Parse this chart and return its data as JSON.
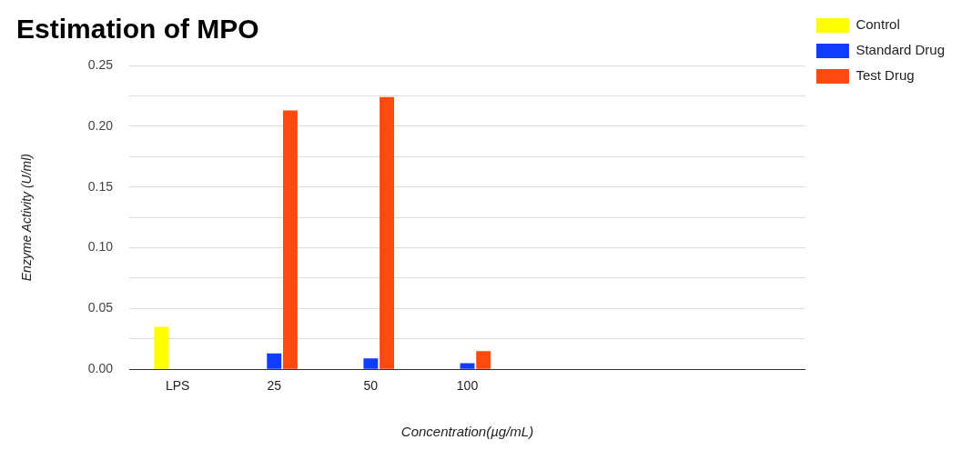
{
  "chart_data": {
    "type": "bar",
    "title": "Estimation of MPO",
    "xlabel": "Concentration(µg/mL)",
    "ylabel": "Enzyme Activity (U/ml)",
    "categories": [
      "LPS",
      "25",
      "50",
      "100",
      null,
      null,
      null
    ],
    "series": [
      {
        "name": "Control",
        "color": "#ffff00",
        "values": [
          0.035,
          0,
          0,
          0,
          null,
          null,
          null
        ]
      },
      {
        "name": "Standard Drug",
        "color": "#0f3dff",
        "values": [
          0,
          0.013,
          0.009,
          0.005,
          0,
          0,
          0
        ]
      },
      {
        "name": "Test Drug",
        "color": "#ff4a0f",
        "values": [
          0,
          0.213,
          0.224,
          0.015,
          0,
          null,
          null
        ]
      }
    ],
    "ylim": [
      0,
      0.25
    ],
    "yticks": [
      {
        "value": 0,
        "label": "0.00"
      },
      {
        "value": 0.025,
        "label": null
      },
      {
        "value": 0.05,
        "label": "0.05"
      },
      {
        "value": 0.075,
        "label": null
      },
      {
        "value": 0.1,
        "label": "0.10"
      },
      {
        "value": 0.125,
        "label": null
      },
      {
        "value": 0.15,
        "label": "0.15"
      },
      {
        "value": 0.175,
        "label": null
      },
      {
        "value": 0.2,
        "label": "0.20"
      },
      {
        "value": 0.225,
        "label": null
      },
      {
        "value": 0.25,
        "label": "0.25"
      }
    ],
    "grid": "y",
    "legend": "top right"
  }
}
